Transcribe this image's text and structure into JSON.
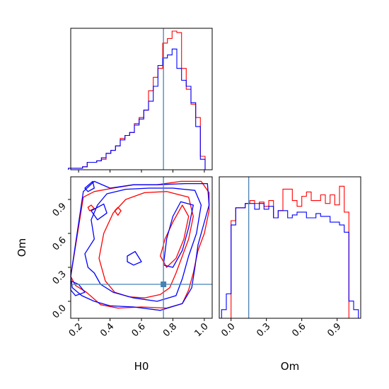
{
  "chart_data": [
    {
      "panel": "H0 marginal histogram",
      "type": "histogram",
      "xlim": [
        0.15,
        1.05
      ],
      "truth": 0.74,
      "series": [
        {
          "color": "#ff0000",
          "bins": [
            0.135,
            0.165,
            0.195,
            0.225,
            0.255,
            0.285,
            0.315,
            0.345,
            0.375,
            0.405,
            0.435,
            0.465,
            0.495,
            0.525,
            0.555,
            0.585,
            0.615,
            0.645,
            0.675,
            0.705,
            0.735,
            0.765,
            0.795,
            0.825,
            0.855,
            0.885,
            0.915,
            0.945,
            0.975,
            1.005
          ],
          "counts": [
            1,
            1,
            1,
            2,
            5,
            5,
            6,
            7,
            11,
            13,
            16,
            21,
            23,
            25,
            31,
            35,
            40,
            53,
            62,
            68,
            85,
            88,
            93,
            92,
            68,
            54,
            44,
            35,
            9
          ]
        },
        {
          "color": "#0000ff",
          "bins": [
            0.135,
            0.165,
            0.195,
            0.225,
            0.255,
            0.285,
            0.315,
            0.345,
            0.375,
            0.405,
            0.435,
            0.465,
            0.495,
            0.525,
            0.555,
            0.585,
            0.615,
            0.645,
            0.675,
            0.705,
            0.735,
            0.765,
            0.795,
            0.825,
            0.855,
            0.885,
            0.915,
            0.945,
            0.975,
            1.005
          ],
          "counts": [
            1,
            1,
            1,
            2,
            5,
            5,
            6,
            8,
            11,
            13,
            16,
            20,
            23,
            25,
            30,
            34,
            40,
            46,
            56,
            70,
            75,
            77,
            81,
            68,
            60,
            56,
            45,
            29,
            7
          ]
        }
      ]
    },
    {
      "panel": "H0 vs Om 2D contours",
      "type": "contour",
      "xlim": [
        0.15,
        1.05
      ],
      "ylim": [
        -0.15,
        1.1
      ],
      "truth": [
        0.74,
        0.15
      ],
      "series": [
        {
          "color": "#ff0000",
          "levels": [
            "inner",
            "outer"
          ]
        },
        {
          "color": "#0000ff",
          "levels": [
            "inner",
            "outer"
          ]
        }
      ]
    },
    {
      "panel": "Om marginal histogram",
      "type": "histogram",
      "xlim": [
        -0.1,
        1.1
      ],
      "truth": 0.15,
      "series": [
        {
          "color": "#ff0000",
          "bins": [
            0.0,
            0.04,
            0.08,
            0.12,
            0.16,
            0.2,
            0.24,
            0.28,
            0.32,
            0.36,
            0.4,
            0.44,
            0.48,
            0.52,
            0.56,
            0.6,
            0.64,
            0.68,
            0.72,
            0.76,
            0.8,
            0.84,
            0.88,
            0.92,
            0.96,
            1.0
          ],
          "counts": [
            68,
            77,
            77,
            80,
            82,
            80,
            81,
            78,
            82,
            70,
            75,
            90,
            90,
            82,
            78,
            85,
            88,
            82,
            82,
            86,
            80,
            86,
            79,
            92,
            74
          ]
        },
        {
          "color": "#0000ff",
          "bins": [
            -0.08,
            -0.04,
            0.0,
            0.04,
            0.08,
            0.12,
            0.16,
            0.2,
            0.24,
            0.28,
            0.32,
            0.36,
            0.4,
            0.44,
            0.48,
            0.52,
            0.56,
            0.6,
            0.64,
            0.68,
            0.72,
            0.76,
            0.8,
            0.84,
            0.88,
            0.92,
            0.96,
            1.0,
            1.04,
            1.08
          ],
          "counts": [
            6,
            17,
            65,
            77,
            77,
            80,
            80,
            76,
            80,
            76,
            78,
            70,
            75,
            75,
            70,
            72,
            74,
            74,
            70,
            70,
            73,
            71,
            71,
            67,
            67,
            65,
            60,
            12,
            6
          ]
        }
      ]
    }
  ],
  "axes": {
    "h0_ticks": [
      "0.2",
      "0.4",
      "0.6",
      "0.8",
      "1.0"
    ],
    "om_ticks": [
      "0.0",
      "0.3",
      "0.6",
      "0.9"
    ],
    "xlabel_h0": "H0",
    "xlabel_om": "Om",
    "ylabel_om": "Om"
  },
  "colors": {
    "red": "#ff0000",
    "blue": "#0000ff",
    "truth": "#4682b4"
  }
}
